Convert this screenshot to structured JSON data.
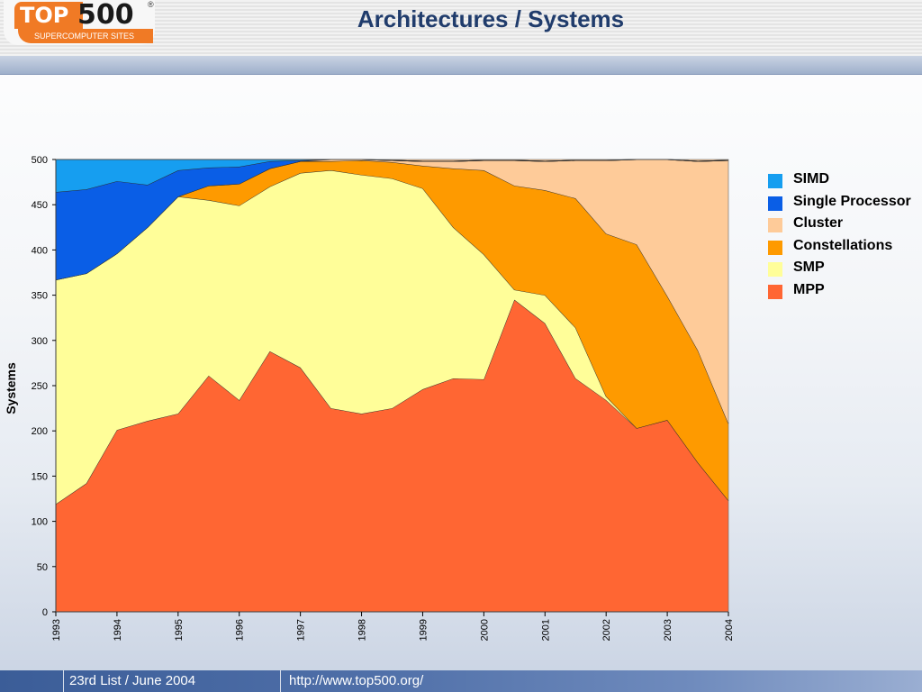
{
  "header": {
    "logo_top": "TOP",
    "logo_500": "500",
    "logo_sub": "SUPERCOMPUTER SITES",
    "logo_reg": "®",
    "title": "Architectures / Systems"
  },
  "footer": {
    "list": "23rd List / June 2004",
    "url": "http://www.top500.org/"
  },
  "colors": {
    "SIMD": "#169ef0",
    "Single Processor": "#0a5ee6",
    "Cluster": "#fecb99",
    "Constellations": "#fe9a00",
    "SMP": "#fffe99",
    "MPP": "#ff6633"
  },
  "chart_data": {
    "type": "area",
    "stacked": true,
    "title": "",
    "xlabel": "",
    "ylabel": "Systems",
    "ylim": [
      0,
      500
    ],
    "yticks": [
      "0",
      "50",
      "100",
      "150",
      "200",
      "250",
      "300",
      "350",
      "400",
      "450",
      "500"
    ],
    "xtick_labels": [
      "1993",
      "1994",
      "1995",
      "1996",
      "1997",
      "1998",
      "1999",
      "2000",
      "2001",
      "2002",
      "2003",
      "2004"
    ],
    "x": [
      1993,
      1993.5,
      1994,
      1994.5,
      1995,
      1995.5,
      1996,
      1996.5,
      1997,
      1997.5,
      1998,
      1998.5,
      1999,
      1999.5,
      2000,
      2000.5,
      2001,
      2001.5,
      2002,
      2002.5,
      2003,
      2003.5,
      2004
    ],
    "legend_position": "right",
    "series": [
      {
        "name": "MPP",
        "values": [
          119,
          142,
          201,
          211,
          219,
          261,
          234,
          288,
          270,
          225,
          219,
          225,
          246,
          258,
          257,
          345,
          319,
          258,
          234,
          203,
          212,
          165,
          123
        ]
      },
      {
        "name": "SMP",
        "values": [
          248,
          232,
          195,
          214,
          240,
          194,
          215,
          182,
          215,
          263,
          264,
          254,
          222,
          167,
          138,
          11,
          31,
          56,
          4,
          0,
          0,
          0,
          0
        ]
      },
      {
        "name": "Constellations",
        "values": [
          0,
          0,
          0,
          0,
          0,
          16,
          24,
          20,
          13,
          10,
          16,
          18,
          25,
          65,
          93,
          115,
          116,
          143,
          180,
          203,
          137,
          124,
          85
        ]
      },
      {
        "name": "Cluster",
        "values": [
          0,
          0,
          0,
          0,
          0,
          0,
          0,
          0,
          0,
          2,
          1,
          2,
          5,
          8,
          11,
          28,
          32,
          42,
          81,
          94,
          151,
          209,
          291
        ]
      },
      {
        "name": "Single Processor",
        "values": [
          97,
          93,
          80,
          47,
          29,
          20,
          19,
          8,
          1,
          0,
          0,
          0,
          0,
          0,
          0,
          0,
          0,
          0,
          0,
          0,
          0,
          0,
          0
        ]
      },
      {
        "name": "SIMD",
        "values": [
          36,
          33,
          24,
          28,
          12,
          9,
          8,
          2,
          1,
          0,
          0,
          0,
          0,
          0,
          0,
          0,
          0,
          0,
          0,
          0,
          0,
          0,
          0
        ]
      }
    ],
    "legend_order": [
      "SIMD",
      "Single Processor",
      "Cluster",
      "Constellations",
      "SMP",
      "MPP"
    ]
  }
}
